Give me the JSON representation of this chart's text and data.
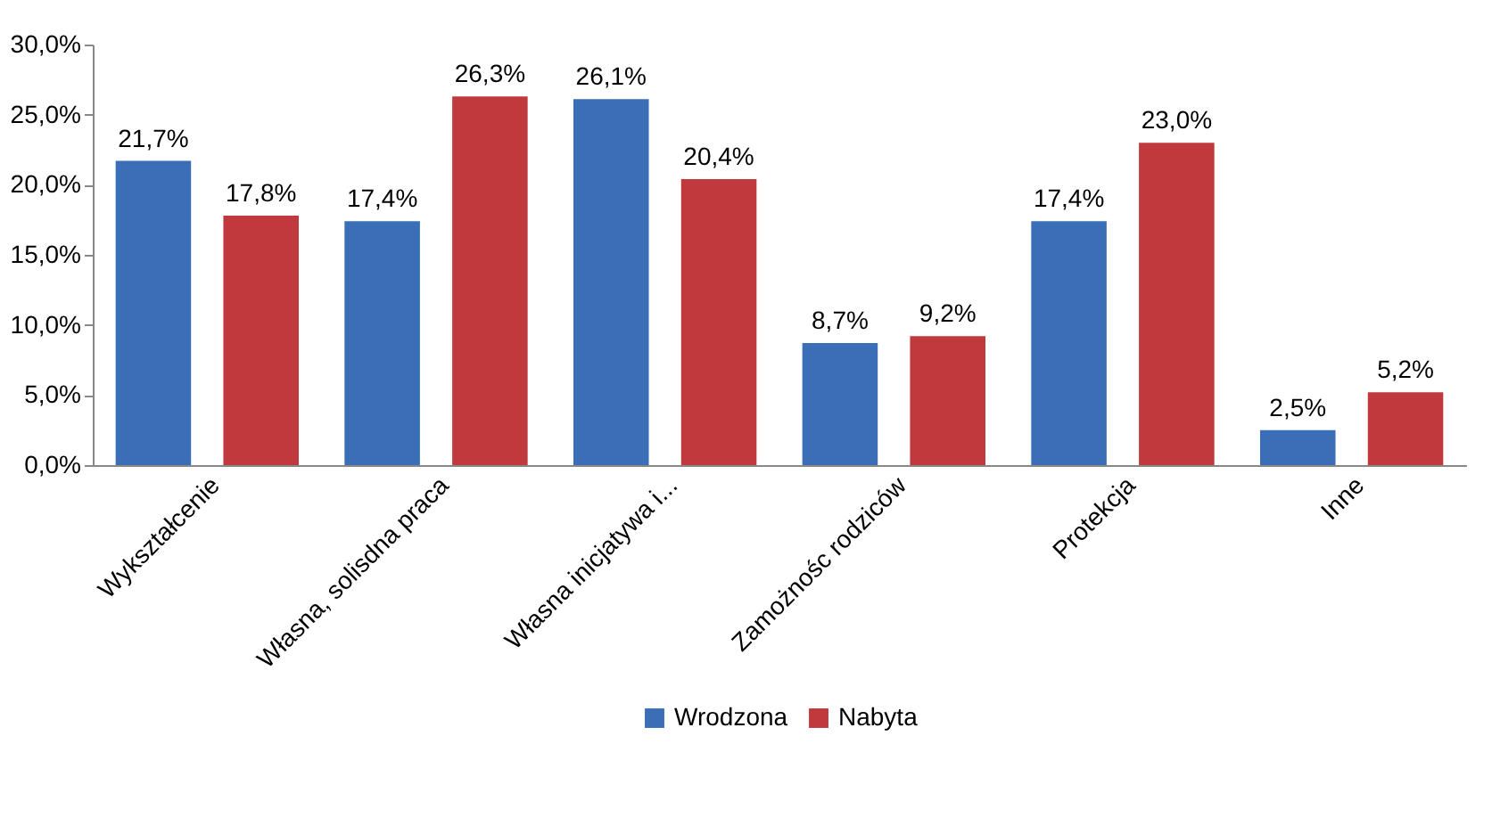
{
  "chart_data": {
    "type": "bar",
    "categories": [
      "Wykształcenie",
      "Własna, solisdna praca",
      "Własna inicjatywa i...",
      "Zamożnośc rodziców",
      "Protekcja",
      "Inne"
    ],
    "series": [
      {
        "name": "Wrodzona",
        "color": "#3a6fb8",
        "values": [
          21.7,
          17.4,
          26.1,
          8.7,
          17.4,
          2.5
        ],
        "value_labels": [
          "21,7%",
          "17,4%",
          "26,1%",
          "8,7%",
          "17,4%",
          "2,5%"
        ]
      },
      {
        "name": "Nabyta",
        "color": "#c0393c",
        "values": [
          17.8,
          26.3,
          20.4,
          9.2,
          23.0,
          5.2
        ],
        "value_labels": [
          "17,8%",
          "26,3%",
          "20,4%",
          "9,2%",
          "23,0%",
          "5,2%"
        ]
      }
    ],
    "ylim": [
      0,
      30
    ],
    "yticks": [
      {
        "value": 0,
        "label": "0,0%"
      },
      {
        "value": 5,
        "label": "5,0%"
      },
      {
        "value": 10,
        "label": "10,0%"
      },
      {
        "value": 15,
        "label": "15,0%"
      },
      {
        "value": 20,
        "label": "20,0%"
      },
      {
        "value": 25,
        "label": "25,0%"
      },
      {
        "value": 30,
        "label": "30,0%"
      }
    ],
    "grid": false,
    "legend": "bottom"
  }
}
